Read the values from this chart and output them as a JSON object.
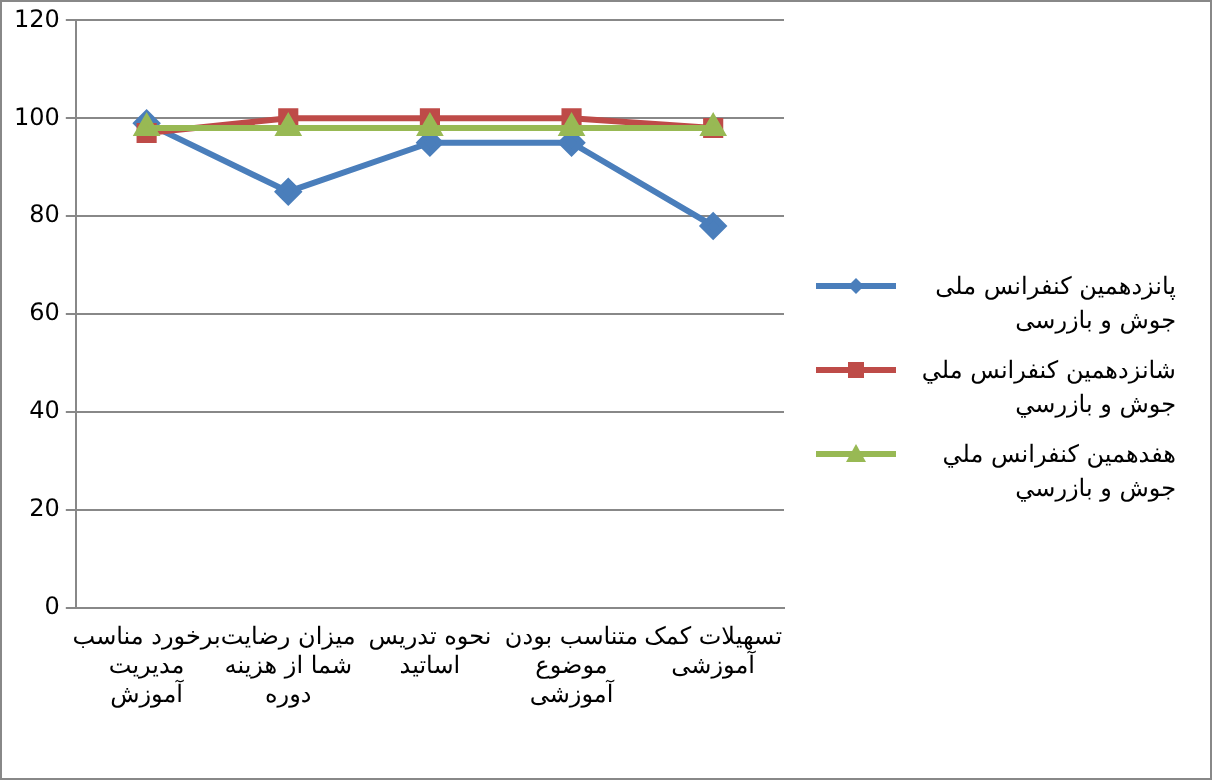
{
  "chart_data": {
    "type": "line",
    "categories": [
      "برخورد مناسب مدیریت آموزش",
      "میزان رضایت شما از هزینه دوره",
      "نحوه تدریس اساتید",
      "متناسب بودن موضوع آموزشی",
      "تسهیلات کمک آموزشی"
    ],
    "series": [
      {
        "name": "پانزدهمین کنفرانس ملی جوش و بازرسی",
        "color": "#4a7ebb",
        "marker": "diamond",
        "values": [
          99,
          85,
          95,
          95,
          78
        ]
      },
      {
        "name": "شانزدهمین  کنفرانس ملي جوش و بازرسي",
        "color": "#be4b48",
        "marker": "square",
        "values": [
          97,
          100,
          100,
          100,
          98
        ]
      },
      {
        "name": "هفدهمین  کنفرانس ملي جوش و بازرسي",
        "color": "#98b954",
        "marker": "triangle",
        "values": [
          98,
          98,
          98,
          98,
          98
        ]
      }
    ],
    "ylim": [
      0,
      120
    ],
    "yticks": [
      0,
      20,
      40,
      60,
      80,
      100,
      120
    ],
    "grid": "y",
    "legend": "right",
    "line_style": "solid"
  }
}
